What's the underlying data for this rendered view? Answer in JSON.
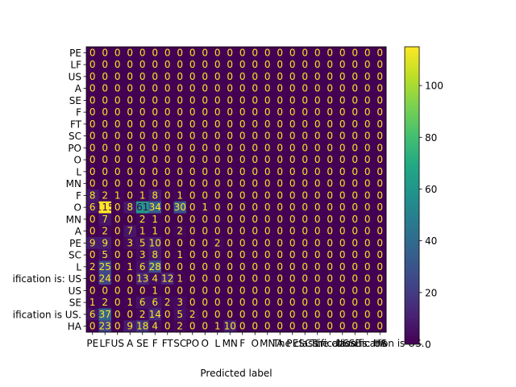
{
  "chart_data": {
    "type": "heatmap",
    "title": "",
    "xlabel": "Predicted label",
    "ylabel": "",
    "x_tick_labels": [
      "PE",
      "LF",
      "US",
      "A",
      "SE",
      "F",
      "FT",
      "SC",
      "PO",
      "O",
      "L",
      "MN",
      "F",
      "O",
      "MN",
      "A",
      "PE",
      "SC",
      "L",
      "The classification is: US",
      "US",
      "SE",
      "The classification is US.",
      "HA"
    ],
    "y_tick_labels": [
      "PE",
      "LF",
      "US",
      "A",
      "SE",
      "F",
      "FT",
      "SC",
      "PO",
      "O",
      "L",
      "MN",
      "F",
      "O",
      "MN",
      "A",
      "PE",
      "SC",
      "L",
      "ification is: US",
      "US",
      "SE",
      "ification is US.",
      "HA"
    ],
    "matrix": [
      [
        0,
        0,
        0,
        0,
        0,
        0,
        0,
        0,
        0,
        0,
        0,
        0,
        0,
        0,
        0,
        0,
        0,
        0,
        0,
        0,
        0,
        0,
        0,
        0
      ],
      [
        0,
        0,
        0,
        0,
        0,
        0,
        0,
        0,
        0,
        0,
        0,
        0,
        0,
        0,
        0,
        0,
        0,
        0,
        0,
        0,
        0,
        0,
        0,
        0
      ],
      [
        0,
        0,
        0,
        0,
        0,
        0,
        0,
        0,
        0,
        0,
        0,
        0,
        0,
        0,
        0,
        0,
        0,
        0,
        0,
        0,
        0,
        0,
        0,
        0
      ],
      [
        0,
        0,
        0,
        0,
        0,
        0,
        0,
        0,
        0,
        0,
        0,
        0,
        0,
        0,
        0,
        0,
        0,
        0,
        0,
        0,
        0,
        0,
        0,
        0
      ],
      [
        0,
        0,
        0,
        0,
        0,
        0,
        0,
        0,
        0,
        0,
        0,
        0,
        0,
        0,
        0,
        0,
        0,
        0,
        0,
        0,
        0,
        0,
        0,
        0
      ],
      [
        0,
        0,
        0,
        0,
        0,
        0,
        0,
        0,
        0,
        0,
        0,
        0,
        0,
        0,
        0,
        0,
        0,
        0,
        0,
        0,
        0,
        0,
        0,
        0
      ],
      [
        0,
        0,
        0,
        0,
        0,
        0,
        0,
        0,
        0,
        0,
        0,
        0,
        0,
        0,
        0,
        0,
        0,
        0,
        0,
        0,
        0,
        0,
        0,
        0
      ],
      [
        0,
        0,
        0,
        0,
        0,
        0,
        0,
        0,
        0,
        0,
        0,
        0,
        0,
        0,
        0,
        0,
        0,
        0,
        0,
        0,
        0,
        0,
        0,
        0
      ],
      [
        0,
        0,
        0,
        0,
        0,
        0,
        0,
        0,
        0,
        0,
        0,
        0,
        0,
        0,
        0,
        0,
        0,
        0,
        0,
        0,
        0,
        0,
        0,
        0
      ],
      [
        0,
        0,
        0,
        0,
        0,
        0,
        0,
        0,
        0,
        0,
        0,
        0,
        0,
        0,
        0,
        0,
        0,
        0,
        0,
        0,
        0,
        0,
        0,
        0
      ],
      [
        0,
        0,
        0,
        0,
        0,
        0,
        0,
        0,
        0,
        0,
        0,
        0,
        0,
        0,
        0,
        0,
        0,
        0,
        0,
        0,
        0,
        0,
        0,
        0
      ],
      [
        0,
        0,
        0,
        0,
        0,
        0,
        0,
        0,
        0,
        0,
        0,
        0,
        0,
        0,
        0,
        0,
        0,
        0,
        0,
        0,
        0,
        0,
        0,
        0
      ],
      [
        8,
        2,
        1,
        0,
        1,
        8,
        0,
        1,
        0,
        0,
        0,
        0,
        0,
        0,
        0,
        0,
        0,
        0,
        0,
        0,
        0,
        0,
        0,
        0
      ],
      [
        6,
        115,
        0,
        8,
        61,
        34,
        0,
        30,
        0,
        1,
        0,
        0,
        0,
        0,
        0,
        0,
        0,
        0,
        0,
        0,
        0,
        0,
        0,
        0
      ],
      [
        0,
        7,
        0,
        0,
        2,
        1,
        0,
        0,
        0,
        0,
        0,
        0,
        0,
        0,
        0,
        0,
        0,
        0,
        0,
        0,
        0,
        0,
        0,
        0
      ],
      [
        0,
        2,
        0,
        7,
        1,
        1,
        0,
        2,
        0,
        0,
        0,
        0,
        0,
        0,
        0,
        0,
        0,
        0,
        0,
        0,
        0,
        0,
        0,
        0
      ],
      [
        9,
        9,
        0,
        3,
        5,
        10,
        0,
        0,
        0,
        0,
        2,
        0,
        0,
        0,
        0,
        0,
        0,
        0,
        0,
        0,
        0,
        0,
        0,
        0
      ],
      [
        0,
        5,
        0,
        0,
        3,
        8,
        0,
        1,
        0,
        0,
        0,
        0,
        0,
        0,
        0,
        0,
        0,
        0,
        0,
        0,
        0,
        0,
        0,
        0
      ],
      [
        2,
        25,
        0,
        1,
        6,
        28,
        0,
        0,
        0,
        0,
        0,
        0,
        0,
        0,
        0,
        0,
        0,
        0,
        0,
        0,
        0,
        0,
        0,
        0
      ],
      [
        0,
        24,
        0,
        0,
        13,
        4,
        12,
        1,
        0,
        0,
        0,
        0,
        0,
        0,
        0,
        0,
        0,
        0,
        0,
        0,
        0,
        0,
        0,
        0
      ],
      [
        0,
        0,
        0,
        0,
        0,
        1,
        0,
        0,
        0,
        0,
        0,
        0,
        0,
        0,
        0,
        0,
        0,
        0,
        0,
        0,
        0,
        0,
        0,
        0
      ],
      [
        1,
        2,
        0,
        1,
        6,
        6,
        2,
        3,
        0,
        0,
        0,
        0,
        0,
        0,
        0,
        0,
        0,
        0,
        0,
        0,
        0,
        0,
        0,
        0
      ],
      [
        6,
        37,
        0,
        0,
        2,
        14,
        0,
        5,
        2,
        0,
        0,
        0,
        0,
        0,
        0,
        0,
        0,
        0,
        0,
        0,
        0,
        0,
        0,
        0
      ],
      [
        0,
        23,
        0,
        9,
        18,
        4,
        0,
        2,
        0,
        0,
        1,
        10,
        0,
        0,
        0,
        0,
        0,
        0,
        0,
        0,
        0,
        0,
        0,
        0
      ]
    ],
    "colorbar": {
      "min": 0,
      "max": 115,
      "ticks": [
        0,
        20,
        40,
        60,
        80,
        100
      ]
    },
    "colormap": "viridis",
    "grid": false
  }
}
